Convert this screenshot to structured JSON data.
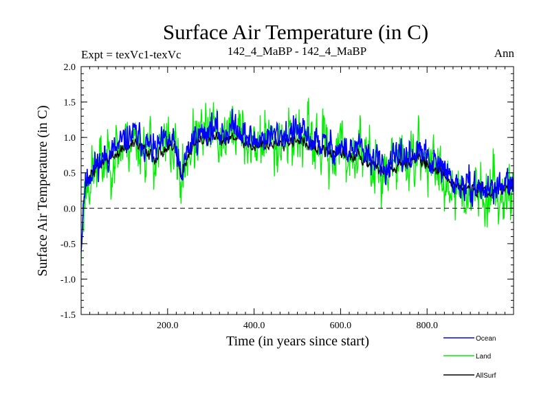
{
  "chart_data": {
    "type": "line",
    "title": "Surface Air Temperature (in C)",
    "expt_label": "Expt = texVc1-texVc",
    "subtitle": "142_4_MaBP - 142_4_MaBP",
    "period_label": "Ann",
    "xlabel": "Time (in years since start)",
    "ylabel": "Surface Air Temperature (in C)",
    "xlim": [
      0,
      1000
    ],
    "ylim": [
      -1.5,
      2.0
    ],
    "x_ticks": [
      200,
      400,
      600,
      800
    ],
    "x_tick_labels": [
      "200.0",
      "400.0",
      "600.0",
      "800.0"
    ],
    "y_ticks": [
      -1.5,
      -1.0,
      -0.5,
      0.0,
      0.5,
      1.0,
      1.5,
      2.0
    ],
    "y_tick_labels": [
      "-1.5",
      "-1.0",
      "-0.5",
      "0.0",
      "0.5",
      "1.0",
      "1.5",
      "2.0"
    ],
    "reference_line": 0.0,
    "anchors_x": [
      0,
      2,
      5,
      10,
      20,
      40,
      60,
      80,
      100,
      120,
      140,
      160,
      170,
      180,
      200,
      220,
      232,
      240,
      260,
      280,
      300,
      320,
      340,
      360,
      380,
      400,
      420,
      440,
      460,
      480,
      500,
      520,
      540,
      560,
      580,
      600,
      620,
      640,
      660,
      680,
      700,
      720,
      740,
      760,
      780,
      800,
      820,
      840,
      860,
      880,
      900,
      920,
      940,
      960,
      980,
      1000
    ],
    "series": [
      {
        "name": "Ocean",
        "color": "#0000ff",
        "noise": 0.12,
        "seed": 11,
        "offset": 0.0,
        "values": [
          -0.5,
          -0.3,
          0.1,
          0.35,
          0.5,
          0.65,
          0.75,
          0.82,
          0.95,
          1.05,
          0.95,
          0.85,
          0.8,
          0.85,
          0.95,
          0.85,
          0.35,
          0.7,
          1.0,
          1.05,
          1.15,
          1.05,
          1.1,
          1.2,
          1.0,
          0.95,
          1.0,
          1.0,
          1.05,
          1.05,
          1.1,
          1.0,
          0.95,
          0.9,
          0.85,
          0.85,
          0.8,
          0.85,
          0.75,
          0.7,
          0.55,
          0.65,
          0.7,
          0.75,
          0.8,
          0.7,
          0.6,
          0.55,
          0.35,
          0.3,
          0.3,
          0.3,
          0.25,
          0.3,
          0.3,
          0.35
        ]
      },
      {
        "name": "Land",
        "color": "#00ee00",
        "noise": 0.24,
        "seed": 23,
        "offset": -0.08,
        "values": [
          -0.7,
          -0.45,
          0.0,
          0.3,
          0.45,
          0.6,
          0.7,
          0.8,
          0.9,
          1.0,
          0.9,
          0.8,
          0.75,
          0.8,
          0.9,
          0.8,
          0.3,
          0.65,
          0.95,
          1.0,
          1.1,
          1.0,
          1.05,
          1.15,
          0.95,
          0.9,
          0.95,
          0.95,
          1.0,
          1.0,
          1.05,
          0.95,
          0.9,
          0.85,
          0.8,
          0.8,
          0.75,
          0.8,
          0.7,
          0.65,
          0.5,
          0.6,
          0.65,
          0.7,
          0.75,
          0.65,
          0.55,
          0.5,
          0.3,
          0.25,
          0.25,
          0.25,
          0.2,
          0.25,
          0.25,
          0.3
        ]
      },
      {
        "name": "AllSurf",
        "color": "#000000",
        "noise": 0.05,
        "seed": 37,
        "offset": 0.0,
        "values": [
          -0.55,
          -0.35,
          0.05,
          0.3,
          0.45,
          0.6,
          0.7,
          0.75,
          0.85,
          0.9,
          0.85,
          0.78,
          0.72,
          0.78,
          0.85,
          0.8,
          0.35,
          0.65,
          0.9,
          0.95,
          1.0,
          0.95,
          1.0,
          1.05,
          0.9,
          0.88,
          0.9,
          0.9,
          0.95,
          0.95,
          1.0,
          0.9,
          0.85,
          0.82,
          0.78,
          0.78,
          0.72,
          0.75,
          0.68,
          0.62,
          0.5,
          0.58,
          0.62,
          0.68,
          0.72,
          0.62,
          0.55,
          0.5,
          0.32,
          0.28,
          0.28,
          0.28,
          0.24,
          0.28,
          0.28,
          0.32
        ]
      }
    ],
    "legend": [
      "Ocean",
      "Land",
      "AllSurf"
    ],
    "legend_position": "bottom-right"
  }
}
